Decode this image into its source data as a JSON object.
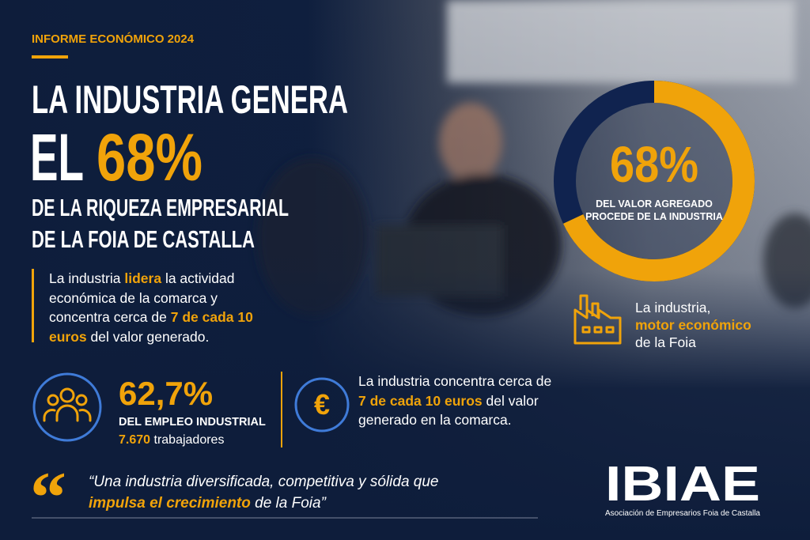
{
  "header": {
    "kicker": "INFORME ECONÓMICO 2024",
    "title": {
      "line1": "LA INDUSTRIA GENERA",
      "line2_prefix": "EL",
      "line2_highlight": "68%",
      "line3": "DE LA RIQUEZA EMPRESARIAL",
      "line4": "DE LA FOIA DE CASTALLA"
    }
  },
  "intro": [
    "La industria",
    "lidera",
    "la actividad económica de la comarca y concentra cerca de",
    "7 de cada 10 euros",
    "del valor generado."
  ],
  "donut": {
    "value": 68,
    "label": "68%",
    "caption": [
      "DEL VALOR AGREGADO",
      "PROCEDE DE LA INDUSTRIA"
    ]
  },
  "motor": [
    "La industria,",
    "motor económico",
    "de la Foia"
  ],
  "employment": {
    "value": "62,7%",
    "caption": "DEL EMPLEO INDUSTRIAL",
    "workers": "7.670",
    "workers_label": "trabajadores"
  },
  "euros": [
    "La industria concentra cerca de",
    "7 de cada 10 euros",
    "del valor generado en la comarca."
  ],
  "quote": [
    "“Una industria diversificada, competitiva y sólida que",
    "impulsa el crecimiento",
    "de la Foia”"
  ],
  "logo": {
    "name": "IBIAE",
    "tagline": "Asociación de Empresarios Foia de Castalla"
  }
}
